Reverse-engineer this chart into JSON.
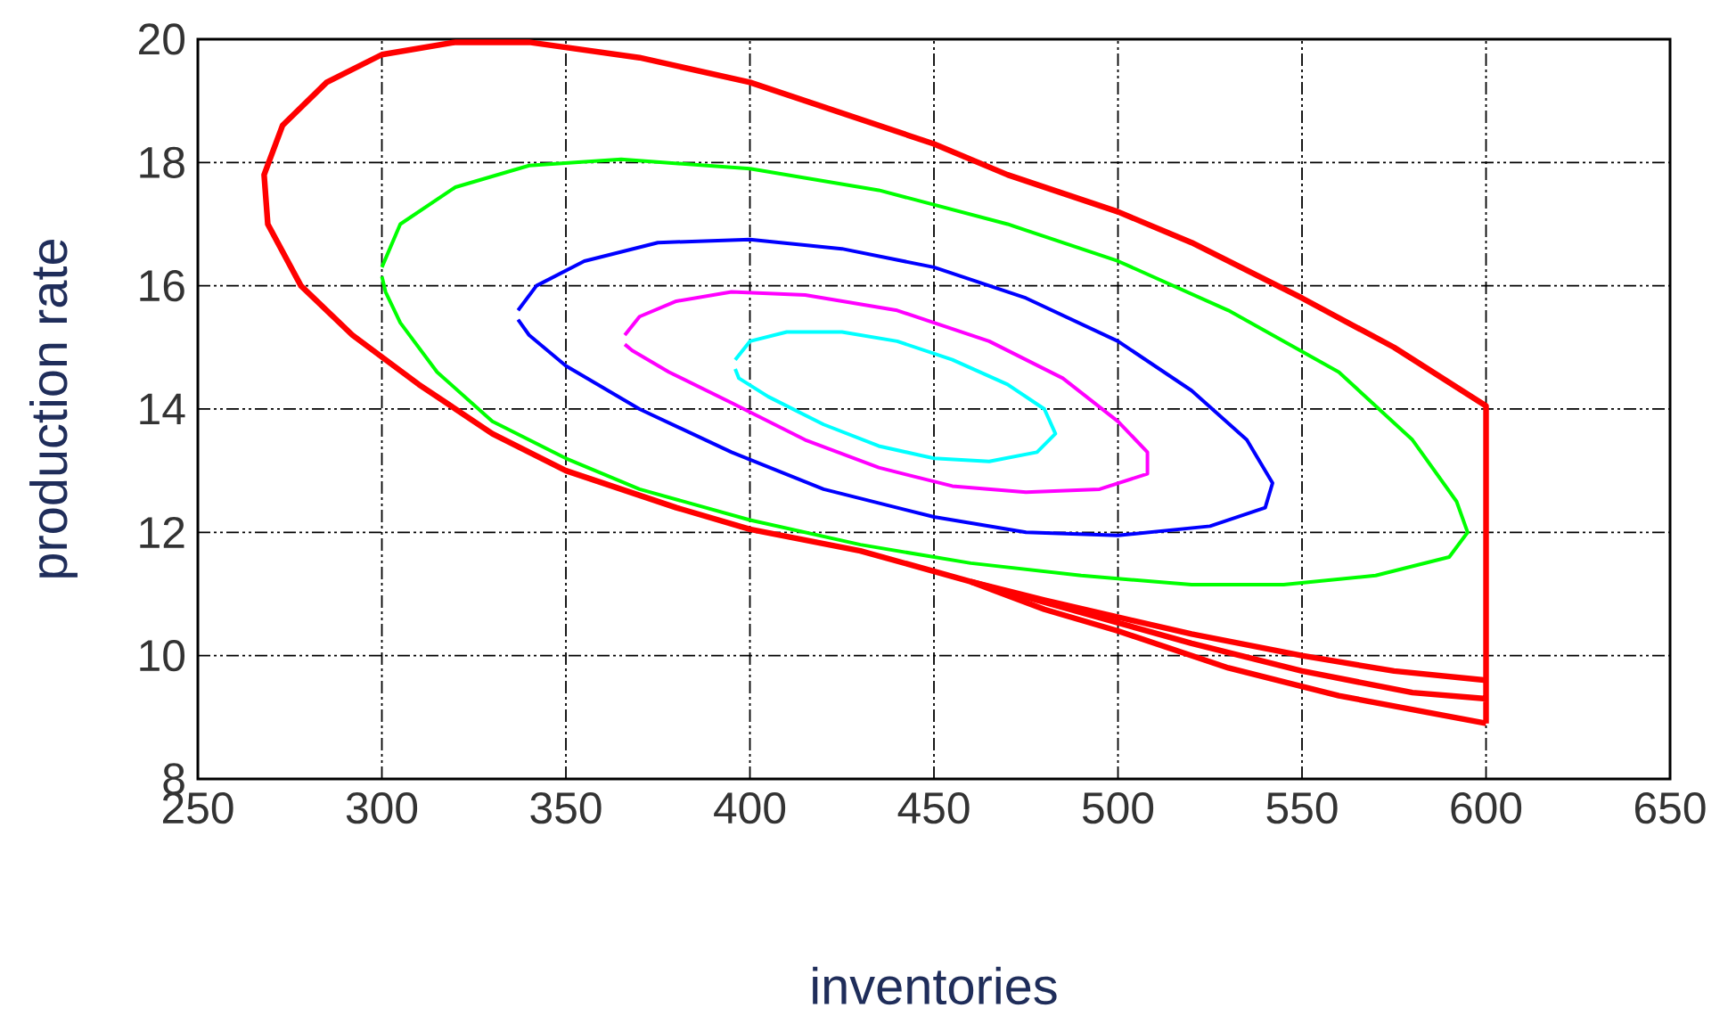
{
  "chart_data": {
    "type": "line",
    "xlabel": "inventories",
    "ylabel": "production rate",
    "xlim": [
      250,
      650
    ],
    "ylim": [
      8,
      20
    ],
    "xticks": [
      250,
      300,
      350,
      400,
      450,
      500,
      550,
      600,
      650
    ],
    "yticks": [
      8,
      10,
      12,
      14,
      16,
      18,
      20
    ],
    "grid": true,
    "marker": "none",
    "line_style": "solid",
    "series": [
      {
        "color": "#ff0000",
        "x": [
          600,
          600,
          575,
          550,
          520,
          500,
          470,
          450,
          400,
          370,
          340,
          320,
          300,
          285,
          273,
          268,
          269,
          278,
          292,
          310,
          330,
          350,
          380,
          400,
          430,
          460,
          490,
          520,
          550,
          580,
          600
        ],
        "values": [
          8.9,
          14.05,
          15.0,
          15.8,
          16.7,
          17.2,
          17.8,
          18.3,
          19.3,
          19.7,
          19.95,
          19.95,
          19.75,
          19.3,
          18.6,
          17.8,
          17.0,
          16.0,
          15.2,
          14.4,
          13.6,
          13.0,
          12.4,
          12.05,
          11.7,
          11.2,
          10.7,
          10.2,
          9.75,
          9.4,
          9.3
        ]
      },
      {
        "color": "#ff0000",
        "x": [
          460,
          480,
          520,
          550,
          575,
          600
        ],
        "values": [
          11.2,
          10.9,
          10.35,
          10.0,
          9.75,
          9.6
        ]
      },
      {
        "color": "#ff0000",
        "x": [
          460,
          480,
          500,
          530,
          560,
          600
        ],
        "values": [
          11.2,
          10.75,
          10.4,
          9.8,
          9.35,
          8.9
        ]
      },
      {
        "color": "#00ff00",
        "x": [
          300,
          305,
          320,
          340,
          365,
          400,
          435,
          470,
          500,
          530,
          560,
          580,
          592,
          595,
          590,
          570,
          545,
          520,
          490,
          460,
          430,
          400,
          370,
          350,
          330,
          315,
          305,
          301,
          300
        ],
        "values": [
          16.3,
          17.0,
          17.6,
          17.95,
          18.05,
          17.9,
          17.55,
          17.0,
          16.4,
          15.6,
          14.6,
          13.5,
          12.5,
          12.0,
          11.6,
          11.3,
          11.15,
          11.15,
          11.3,
          11.5,
          11.8,
          12.2,
          12.7,
          13.2,
          13.8,
          14.6,
          15.4,
          15.9,
          16.15
        ]
      },
      {
        "color": "#0000ff",
        "x": [
          337,
          342,
          355,
          375,
          400,
          425,
          450,
          475,
          500,
          520,
          535,
          542,
          540,
          525,
          500,
          475,
          450,
          420,
          395,
          370,
          350,
          340,
          337
        ],
        "values": [
          15.6,
          16.0,
          16.4,
          16.7,
          16.75,
          16.6,
          16.3,
          15.8,
          15.1,
          14.3,
          13.5,
          12.8,
          12.4,
          12.1,
          11.95,
          12.0,
          12.25,
          12.7,
          13.3,
          14.0,
          14.7,
          15.2,
          15.45
        ]
      },
      {
        "color": "#ff00ff",
        "x": [
          366,
          370,
          380,
          395,
          415,
          440,
          465,
          485,
          500,
          508,
          508,
          495,
          475,
          455,
          435,
          415,
          395,
          378,
          368,
          366
        ],
        "values": [
          15.2,
          15.5,
          15.75,
          15.9,
          15.85,
          15.6,
          15.1,
          14.5,
          13.8,
          13.3,
          12.95,
          12.7,
          12.65,
          12.75,
          13.05,
          13.5,
          14.1,
          14.6,
          14.95,
          15.05
        ]
      },
      {
        "color": "#00ffff",
        "x": [
          396,
          400,
          410,
          425,
          440,
          455,
          470,
          480,
          483,
          478,
          465,
          450,
          435,
          420,
          405,
          397,
          396
        ],
        "values": [
          14.8,
          15.1,
          15.25,
          15.25,
          15.1,
          14.8,
          14.4,
          14.0,
          13.6,
          13.3,
          13.15,
          13.2,
          13.4,
          13.75,
          14.2,
          14.5,
          14.65
        ]
      }
    ]
  }
}
